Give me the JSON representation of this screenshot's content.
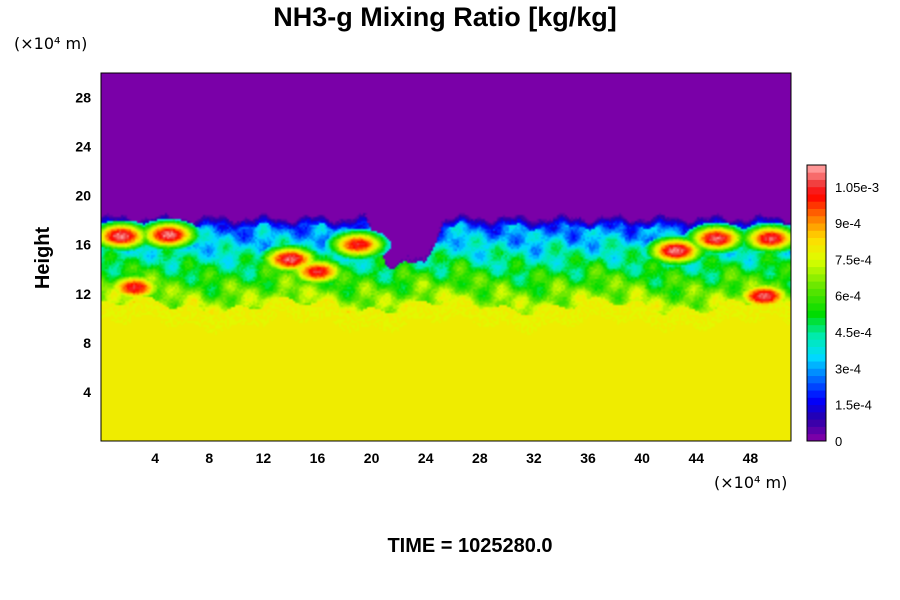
{
  "chart_data": {
    "type": "heatmap",
    "title": "NH3-g Mixing Ratio [kg/kg]",
    "ylabel": "Height",
    "xlabel": "",
    "x_unit": "(×10⁴ m)",
    "y_unit": "(×10⁴ m)",
    "x_range": [
      0,
      51
    ],
    "y_range": [
      0,
      30
    ],
    "x_ticks": [
      "4",
      "8",
      "12",
      "16",
      "20",
      "24",
      "28",
      "32",
      "36",
      "40",
      "44",
      "48"
    ],
    "y_ticks": [
      "4",
      "8",
      "12",
      "16",
      "20",
      "24",
      "28"
    ],
    "colorbar": {
      "min": 0,
      "max": 0.00114,
      "step": 3e-05,
      "labels": [
        "0",
        "1.5e-4",
        "3e-4",
        "4.5e-4",
        "6e-4",
        "7.5e-4",
        "9e-4",
        "1.05e-3"
      ],
      "label_values": [
        0,
        0.00015,
        0.0003,
        0.00045,
        0.0006,
        0.00075,
        0.0009,
        0.00105
      ]
    },
    "field": {
      "upper_value": 0,
      "lower_value": 0.00078,
      "cloud_top_height": 18.2,
      "mixed_layer_base_height": 11.0,
      "gap_x_range": [
        19.5,
        25.5
      ],
      "hot_spots": [
        {
          "x": 1.5,
          "y": 16.7,
          "value": 0.00112
        },
        {
          "x": 5.0,
          "y": 16.8,
          "value": 0.00112
        },
        {
          "x": 14.0,
          "y": 14.8,
          "value": 0.0011
        },
        {
          "x": 16.0,
          "y": 13.8,
          "value": 0.00105
        },
        {
          "x": 19.0,
          "y": 16.0,
          "value": 0.00105
        },
        {
          "x": 2.5,
          "y": 12.5,
          "value": 0.00105
        },
        {
          "x": 42.5,
          "y": 15.5,
          "value": 0.00112
        },
        {
          "x": 45.5,
          "y": 16.5,
          "value": 0.0011
        },
        {
          "x": 49.5,
          "y": 16.5,
          "value": 0.00108
        },
        {
          "x": 49.0,
          "y": 11.8,
          "value": 0.0011
        }
      ]
    },
    "time_label": "TIME = 1025280.0"
  },
  "colors": {
    "upper": "#7a00a8",
    "lower": "#dcff00"
  }
}
